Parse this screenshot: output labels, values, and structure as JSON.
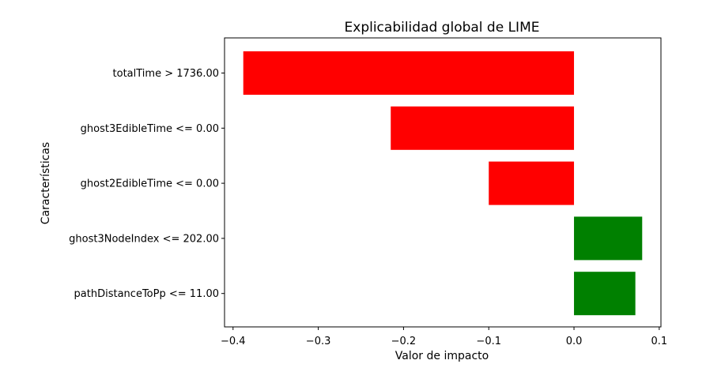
{
  "chart_data": {
    "type": "bar",
    "orientation": "horizontal",
    "title": "Explicabilidad global de LIME",
    "xlabel": "Valor de impacto",
    "ylabel": "Características",
    "categories": [
      "totalTime > 1736.00",
      "ghost3EdibleTime <= 0.00",
      "ghost2EdibleTime <= 0.00",
      "ghost3NodeIndex <= 202.00",
      "pathDistanceToPp <= 11.00"
    ],
    "values": [
      -0.388,
      -0.215,
      -0.1,
      0.08,
      0.072
    ],
    "xlim": [
      -0.41,
      0.102
    ],
    "xticks": [
      -0.4,
      -0.3,
      -0.2,
      -0.1,
      0.0,
      0.1
    ],
    "xtick_labels": [
      "−0.4",
      "−0.3",
      "−0.2",
      "−0.1",
      "0.0",
      "0.1"
    ],
    "grid": false,
    "colors": {
      "negative": "#ff0000",
      "positive": "#008000"
    }
  }
}
